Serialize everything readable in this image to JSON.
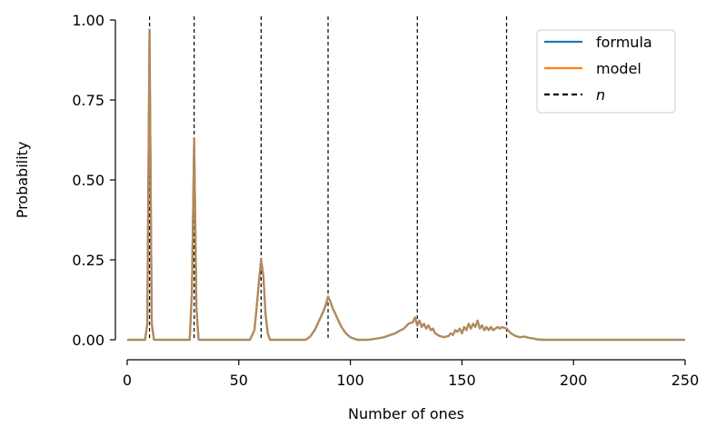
{
  "chart_data": {
    "type": "line",
    "xlabel": "Number of ones",
    "ylabel": "Probability",
    "xlim": [
      0,
      250
    ],
    "ylim": [
      0,
      1.0
    ],
    "x_ticks": [
      "0",
      "50",
      "100",
      "150",
      "200",
      "250"
    ],
    "y_ticks": [
      "0.00",
      "0.25",
      "0.50",
      "0.75",
      "1.00"
    ],
    "grid": false,
    "legend_position": "top-right",
    "colors": {
      "formula": "#1f77b4",
      "model": "#ff7f0e",
      "blend": "#c08a4f",
      "n": "#000000"
    },
    "n_values": [
      10,
      30,
      60,
      90,
      130,
      170
    ],
    "series": [
      {
        "name": "formula",
        "points": [
          [
            0,
            0
          ],
          [
            8,
            0
          ],
          [
            9,
            0.05
          ],
          [
            10,
            0.97
          ],
          [
            11,
            0.05
          ],
          [
            12,
            0
          ],
          [
            28,
            0
          ],
          [
            29,
            0.15
          ],
          [
            30,
            0.63
          ],
          [
            31,
            0.1
          ],
          [
            32,
            0
          ],
          [
            55,
            0
          ],
          [
            57,
            0.03
          ],
          [
            58,
            0.1
          ],
          [
            59,
            0.18
          ],
          [
            60,
            0.25
          ],
          [
            61,
            0.2
          ],
          [
            62,
            0.08
          ],
          [
            63,
            0.02
          ],
          [
            64,
            0
          ],
          [
            80,
            0
          ],
          [
            82,
            0.01
          ],
          [
            84,
            0.03
          ],
          [
            86,
            0.06
          ],
          [
            88,
            0.09
          ],
          [
            89,
            0.11
          ],
          [
            90,
            0.135
          ],
          [
            91,
            0.12
          ],
          [
            92,
            0.1
          ],
          [
            94,
            0.07
          ],
          [
            96,
            0.04
          ],
          [
            98,
            0.02
          ],
          [
            100,
            0.008
          ],
          [
            103,
            0
          ],
          [
            108,
            0
          ],
          [
            112,
            0.004
          ],
          [
            115,
            0.008
          ],
          [
            118,
            0.015
          ],
          [
            120,
            0.02
          ],
          [
            122,
            0.028
          ],
          [
            124,
            0.035
          ],
          [
            126,
            0.05
          ],
          [
            128,
            0.055
          ],
          [
            129,
            0.07
          ],
          [
            130,
            0.045
          ],
          [
            131,
            0.06
          ],
          [
            132,
            0.04
          ],
          [
            133,
            0.05
          ],
          [
            134,
            0.035
          ],
          [
            135,
            0.045
          ],
          [
            136,
            0.03
          ],
          [
            137,
            0.035
          ],
          [
            138,
            0.02
          ],
          [
            140,
            0.012
          ],
          [
            142,
            0.008
          ],
          [
            144,
            0.012
          ],
          [
            145,
            0.02
          ],
          [
            146,
            0.015
          ],
          [
            147,
            0.03
          ],
          [
            148,
            0.025
          ],
          [
            149,
            0.035
          ],
          [
            150,
            0.02
          ],
          [
            151,
            0.04
          ],
          [
            152,
            0.03
          ],
          [
            153,
            0.05
          ],
          [
            154,
            0.035
          ],
          [
            155,
            0.05
          ],
          [
            156,
            0.04
          ],
          [
            157,
            0.06
          ],
          [
            158,
            0.035
          ],
          [
            159,
            0.045
          ],
          [
            160,
            0.03
          ],
          [
            161,
            0.04
          ],
          [
            162,
            0.03
          ],
          [
            163,
            0.04
          ],
          [
            164,
            0.03
          ],
          [
            165,
            0.035
          ],
          [
            166,
            0.04
          ],
          [
            167,
            0.035
          ],
          [
            168,
            0.04
          ],
          [
            170,
            0.035
          ],
          [
            172,
            0.02
          ],
          [
            174,
            0.012
          ],
          [
            176,
            0.008
          ],
          [
            178,
            0.01
          ],
          [
            180,
            0.006
          ],
          [
            182,
            0.004
          ],
          [
            184,
            0.001
          ],
          [
            186,
            0
          ],
          [
            250,
            0
          ]
        ]
      },
      {
        "name": "model",
        "points": [
          [
            0,
            0
          ],
          [
            8,
            0
          ],
          [
            9,
            0.05
          ],
          [
            10,
            0.97
          ],
          [
            11,
            0.05
          ],
          [
            12,
            0
          ],
          [
            28,
            0
          ],
          [
            29,
            0.15
          ],
          [
            30,
            0.63
          ],
          [
            31,
            0.1
          ],
          [
            32,
            0
          ],
          [
            55,
            0
          ],
          [
            57,
            0.03
          ],
          [
            58,
            0.1
          ],
          [
            59,
            0.18
          ],
          [
            60,
            0.25
          ],
          [
            61,
            0.2
          ],
          [
            62,
            0.08
          ],
          [
            63,
            0.02
          ],
          [
            64,
            0
          ],
          [
            80,
            0
          ],
          [
            82,
            0.01
          ],
          [
            84,
            0.03
          ],
          [
            86,
            0.06
          ],
          [
            88,
            0.09
          ],
          [
            89,
            0.11
          ],
          [
            90,
            0.135
          ],
          [
            91,
            0.12
          ],
          [
            92,
            0.1
          ],
          [
            94,
            0.07
          ],
          [
            96,
            0.04
          ],
          [
            98,
            0.02
          ],
          [
            100,
            0.008
          ],
          [
            103,
            0
          ],
          [
            108,
            0
          ],
          [
            112,
            0.004
          ],
          [
            115,
            0.008
          ],
          [
            118,
            0.015
          ],
          [
            120,
            0.02
          ],
          [
            122,
            0.028
          ],
          [
            124,
            0.035
          ],
          [
            126,
            0.05
          ],
          [
            128,
            0.055
          ],
          [
            129,
            0.07
          ],
          [
            130,
            0.045
          ],
          [
            131,
            0.06
          ],
          [
            132,
            0.04
          ],
          [
            133,
            0.05
          ],
          [
            134,
            0.035
          ],
          [
            135,
            0.045
          ],
          [
            136,
            0.03
          ],
          [
            137,
            0.035
          ],
          [
            138,
            0.02
          ],
          [
            140,
            0.012
          ],
          [
            142,
            0.008
          ],
          [
            144,
            0.012
          ],
          [
            145,
            0.02
          ],
          [
            146,
            0.015
          ],
          [
            147,
            0.03
          ],
          [
            148,
            0.025
          ],
          [
            149,
            0.035
          ],
          [
            150,
            0.02
          ],
          [
            151,
            0.04
          ],
          [
            152,
            0.03
          ],
          [
            153,
            0.05
          ],
          [
            154,
            0.035
          ],
          [
            155,
            0.05
          ],
          [
            156,
            0.04
          ],
          [
            157,
            0.06
          ],
          [
            158,
            0.035
          ],
          [
            159,
            0.045
          ],
          [
            160,
            0.03
          ],
          [
            161,
            0.04
          ],
          [
            162,
            0.03
          ],
          [
            163,
            0.04
          ],
          [
            164,
            0.03
          ],
          [
            165,
            0.035
          ],
          [
            166,
            0.04
          ],
          [
            167,
            0.035
          ],
          [
            168,
            0.04
          ],
          [
            170,
            0.035
          ],
          [
            172,
            0.02
          ],
          [
            174,
            0.012
          ],
          [
            176,
            0.008
          ],
          [
            178,
            0.01
          ],
          [
            180,
            0.006
          ],
          [
            182,
            0.004
          ],
          [
            184,
            0.001
          ],
          [
            186,
            0
          ],
          [
            250,
            0
          ]
        ]
      }
    ],
    "legend": [
      {
        "label": "formula",
        "style": "solid",
        "color": "#1f77b4"
      },
      {
        "label": "model",
        "style": "solid",
        "color": "#ff7f0e"
      },
      {
        "label": "n",
        "style": "dashed",
        "color": "#000000",
        "italic": true
      }
    ]
  }
}
